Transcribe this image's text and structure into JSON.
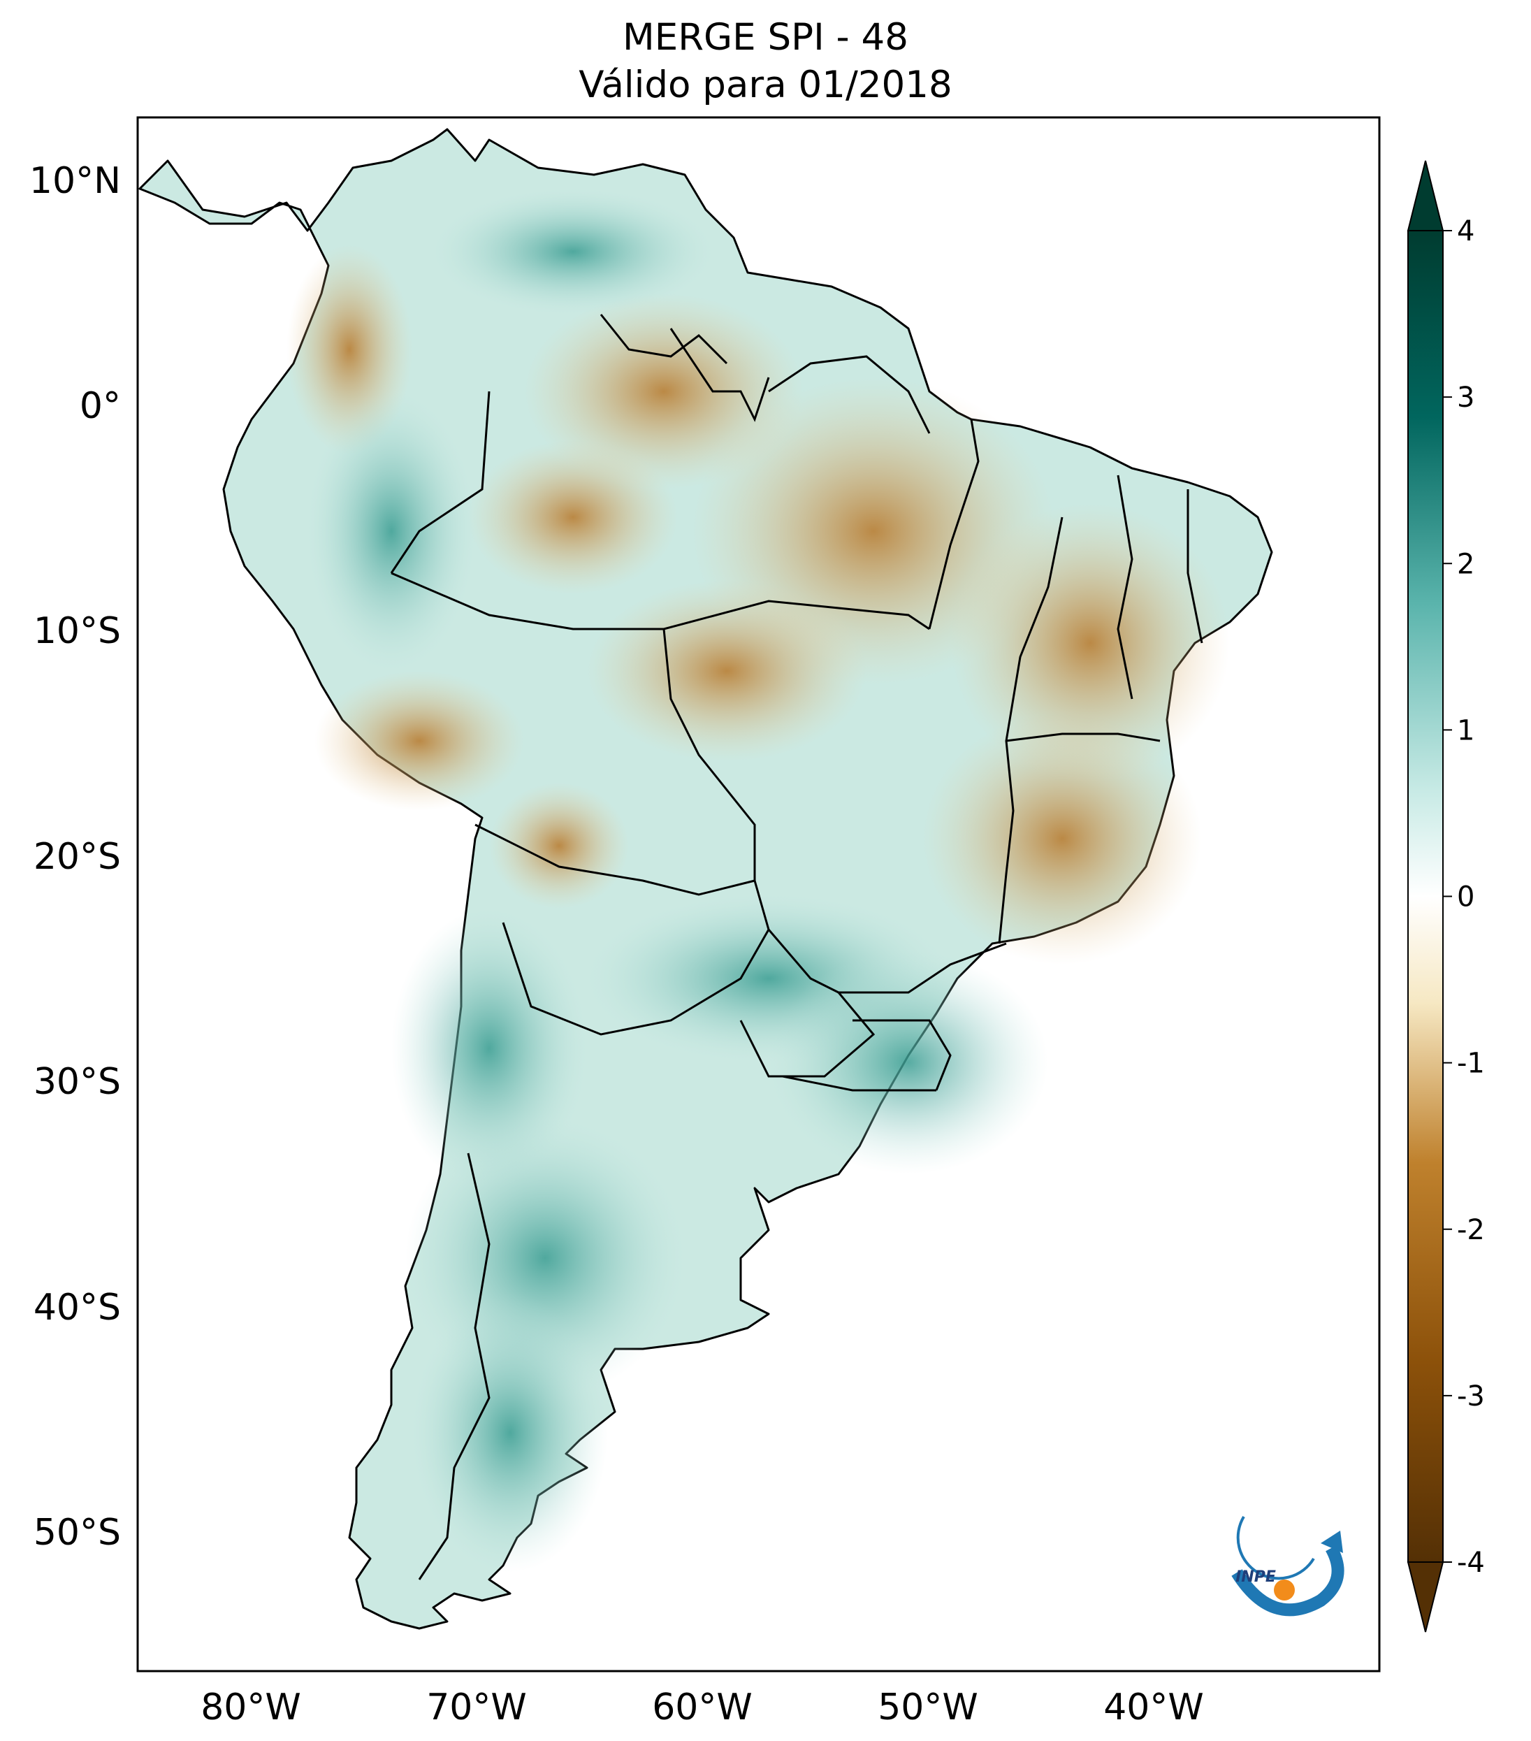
{
  "title": {
    "line1": "MERGE   SPI - 48",
    "line2": "Válido para 01/2018"
  },
  "axes": {
    "lat_labels": [
      "10°N",
      "0°",
      "10°S",
      "20°S",
      "30°S",
      "40°S",
      "50°S"
    ],
    "lon_labels": [
      "80°W",
      "70°W",
      "60°W",
      "50°W",
      "40°W"
    ],
    "lat_values": [
      10,
      0,
      -10,
      -20,
      -30,
      -40,
      -50
    ],
    "lon_values": [
      -80,
      -70,
      -60,
      -50,
      -40
    ],
    "lat_range": [
      -56,
      12.5
    ],
    "lon_range": [
      -85,
      -30
    ]
  },
  "colorbar": {
    "ticks": [
      "4",
      "3",
      "2",
      "1",
      "0",
      "-1",
      "-2",
      "-3",
      "-4"
    ],
    "tick_values": [
      4,
      3,
      2,
      1,
      0,
      -1,
      -2,
      -3,
      -4
    ],
    "range": [
      -4,
      4
    ],
    "colors": {
      "dry_extreme": "#543005",
      "dry": "#bf812d",
      "dry_light": "#f6e8c3",
      "neutral": "#f5f5f5",
      "wet_light": "#c7eae5",
      "wet": "#35978f",
      "wet_extreme": "#003c30"
    }
  },
  "logo": {
    "text": "INPE",
    "blue": "#1f78b4",
    "orange": "#f28c1b"
  },
  "colors": {
    "land_wet": "#b9e2dc",
    "land_dry": "#e8cfa0",
    "border": "#000000",
    "frame": "#000000"
  }
}
